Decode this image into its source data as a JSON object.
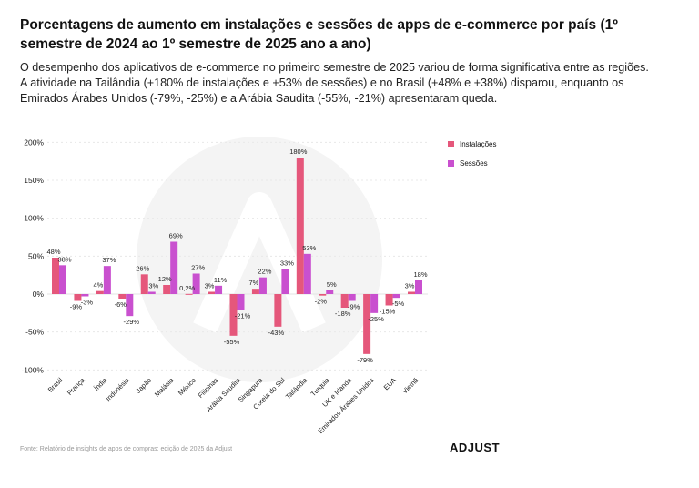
{
  "title": "Porcentagens de aumento em instalações e sessões de apps de e-commerce por país (1º semestre de 2024 ao 1º semestre de 2025 ano a ano)",
  "subtitle": "O desempenho dos aplicativos de e-commerce no primeiro semestre de 2025 variou de forma significativa entre as regiões. A atividade na Tailândia (+180% de instalações e +53% de sessões) e no Brasil (+48% e +38%) disparou, enquanto os Emirados Árabes Unidos (-79%, -25%) e a Arábia Saudita (-55%, -21%) apresentaram queda.",
  "source": "Fonte: Relatório de insights de apps de compras: edição de 2025 da Adjust",
  "logo": "ADJUST",
  "chart_data": {
    "type": "bar",
    "categories": [
      "Brasil",
      "França",
      "Índia",
      "Indonésia",
      "Japão",
      "Malásia",
      "México",
      "Filipinas",
      "Arábia Saudita",
      "Singapura",
      "Coreia do Sul",
      "Tailândia",
      "Turquia",
      "UK e Irlanda",
      "Emirados Árabes Unidos",
      "EUA",
      "Vietnã"
    ],
    "series": [
      {
        "name": "Instalações",
        "color": "#e5577b",
        "values": [
          48,
          -9,
          4,
          -6,
          26,
          12,
          0.2,
          3,
          -55,
          7,
          -43,
          180,
          -2,
          -18,
          -79,
          -15,
          3
        ],
        "labels": [
          "48%",
          "-9%",
          "4%",
          "-6%",
          "26%",
          "12%",
          "0,2%",
          "3%",
          "-55%",
          "7%",
          "-43%",
          "180%",
          "-2%",
          "-18%",
          "-79%",
          "-15%",
          "3%"
        ]
      },
      {
        "name": "Sessões",
        "color": "#c950cf",
        "values": [
          38,
          -3,
          37,
          -29,
          3,
          69,
          27,
          11,
          -21,
          22,
          33,
          53,
          5,
          -9,
          -25,
          -5,
          18
        ],
        "labels": [
          "38%",
          "-3%",
          "37%",
          "-29%",
          "3%",
          "69%",
          "27%",
          "11%",
          "-21%",
          "22%",
          "33%",
          "53%",
          "5%",
          "-9%",
          "-25%",
          "-5%",
          "18%"
        ]
      }
    ],
    "yticks": [
      "200%",
      "150%",
      "100%",
      "50%",
      "0%",
      "-50%",
      "-100%"
    ],
    "ytick_values": [
      200,
      150,
      100,
      50,
      0,
      -50,
      -100
    ],
    "ylim": [
      -100,
      200
    ],
    "grid": true,
    "legend": "right"
  }
}
